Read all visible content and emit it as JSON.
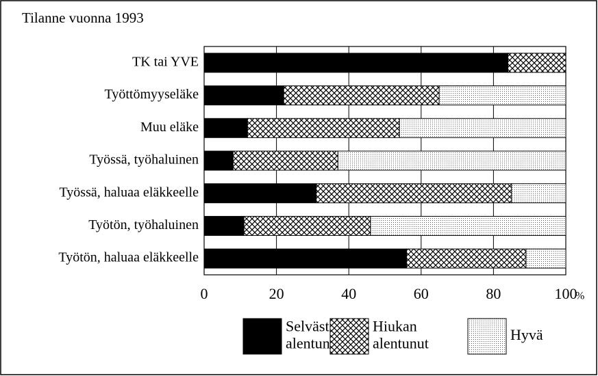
{
  "chart_data": {
    "type": "stacked_barh",
    "title": "Tilanne vuonna 1993",
    "categories": [
      "TK tai YVE",
      "Työttömyyseläke",
      "Muu eläke",
      "Työssä, työhaluinen",
      "Työssä, haluaa eläkkeelle",
      "Työtön, työhaluinen",
      "Työtön, haluaa eläkkeelle"
    ],
    "series": [
      {
        "name": "Selvästi alentunut",
        "color": "#000000",
        "pattern": "solid",
        "values": [
          84,
          22,
          12,
          8,
          31,
          11,
          56
        ]
      },
      {
        "name": "Hiukan alentunut",
        "color": "#000000",
        "pattern": "crosshatch",
        "values": [
          16,
          43,
          42,
          29,
          54,
          35,
          33
        ]
      },
      {
        "name": "Hyvä",
        "color": "#000000",
        "pattern": "dots",
        "values": [
          0,
          35,
          46,
          63,
          15,
          54,
          11
        ]
      }
    ],
    "xlabel": "%",
    "xlim": [
      0,
      100
    ],
    "xticks": [
      0,
      20,
      40,
      60,
      80,
      100
    ],
    "grid": true
  }
}
